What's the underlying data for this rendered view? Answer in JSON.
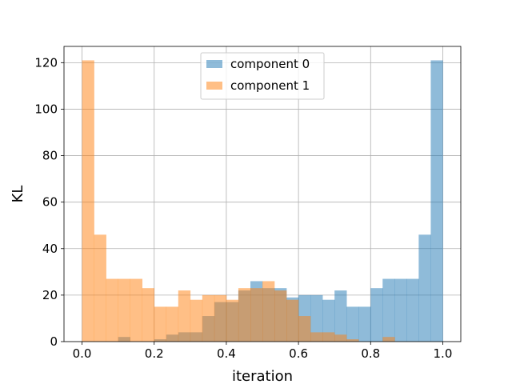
{
  "chart_data": {
    "type": "bar",
    "title": "",
    "xlabel": "iteration",
    "ylabel": "KL",
    "xlim": [
      -0.05,
      1.05
    ],
    "ylim": [
      0,
      127
    ],
    "bin_edges": [
      0.0,
      0.0333,
      0.0667,
      0.1,
      0.1333,
      0.1667,
      0.2,
      0.2333,
      0.2667,
      0.3,
      0.3333,
      0.3667,
      0.4,
      0.4333,
      0.4667,
      0.5,
      0.5333,
      0.5667,
      0.6,
      0.6333,
      0.6667,
      0.7,
      0.7333,
      0.7667,
      0.8,
      0.8333,
      0.8667,
      0.9,
      0.9333,
      0.9667,
      1.0
    ],
    "xticks": [
      0.0,
      0.2,
      0.4,
      0.6,
      0.8,
      1.0
    ],
    "xtick_labels": [
      "0.0",
      "0.2",
      "0.4",
      "0.6",
      "0.8",
      "1.0"
    ],
    "yticks": [
      0,
      20,
      40,
      60,
      80,
      100,
      120
    ],
    "ytick_labels": [
      "0",
      "20",
      "40",
      "60",
      "80",
      "100",
      "120"
    ],
    "grid": true,
    "legend_position": "top-center",
    "series": [
      {
        "name": "component 0",
        "color": "#1f77b4",
        "alpha": 0.5,
        "values": [
          0,
          0,
          0,
          2,
          0,
          0,
          1,
          3,
          4,
          4,
          11,
          17,
          17,
          22,
          26,
          23,
          23,
          19,
          20,
          20,
          18,
          22,
          15,
          15,
          23,
          27,
          27,
          27,
          46,
          121
        ]
      },
      {
        "name": "component 1",
        "color": "#ff7f0e",
        "alpha": 0.5,
        "values": [
          121,
          46,
          27,
          27,
          27,
          23,
          15,
          15,
          22,
          18,
          20,
          20,
          18,
          23,
          23,
          26,
          22,
          18,
          11,
          4,
          4,
          3,
          1,
          0,
          0,
          2,
          0,
          0,
          0,
          0
        ]
      }
    ]
  }
}
